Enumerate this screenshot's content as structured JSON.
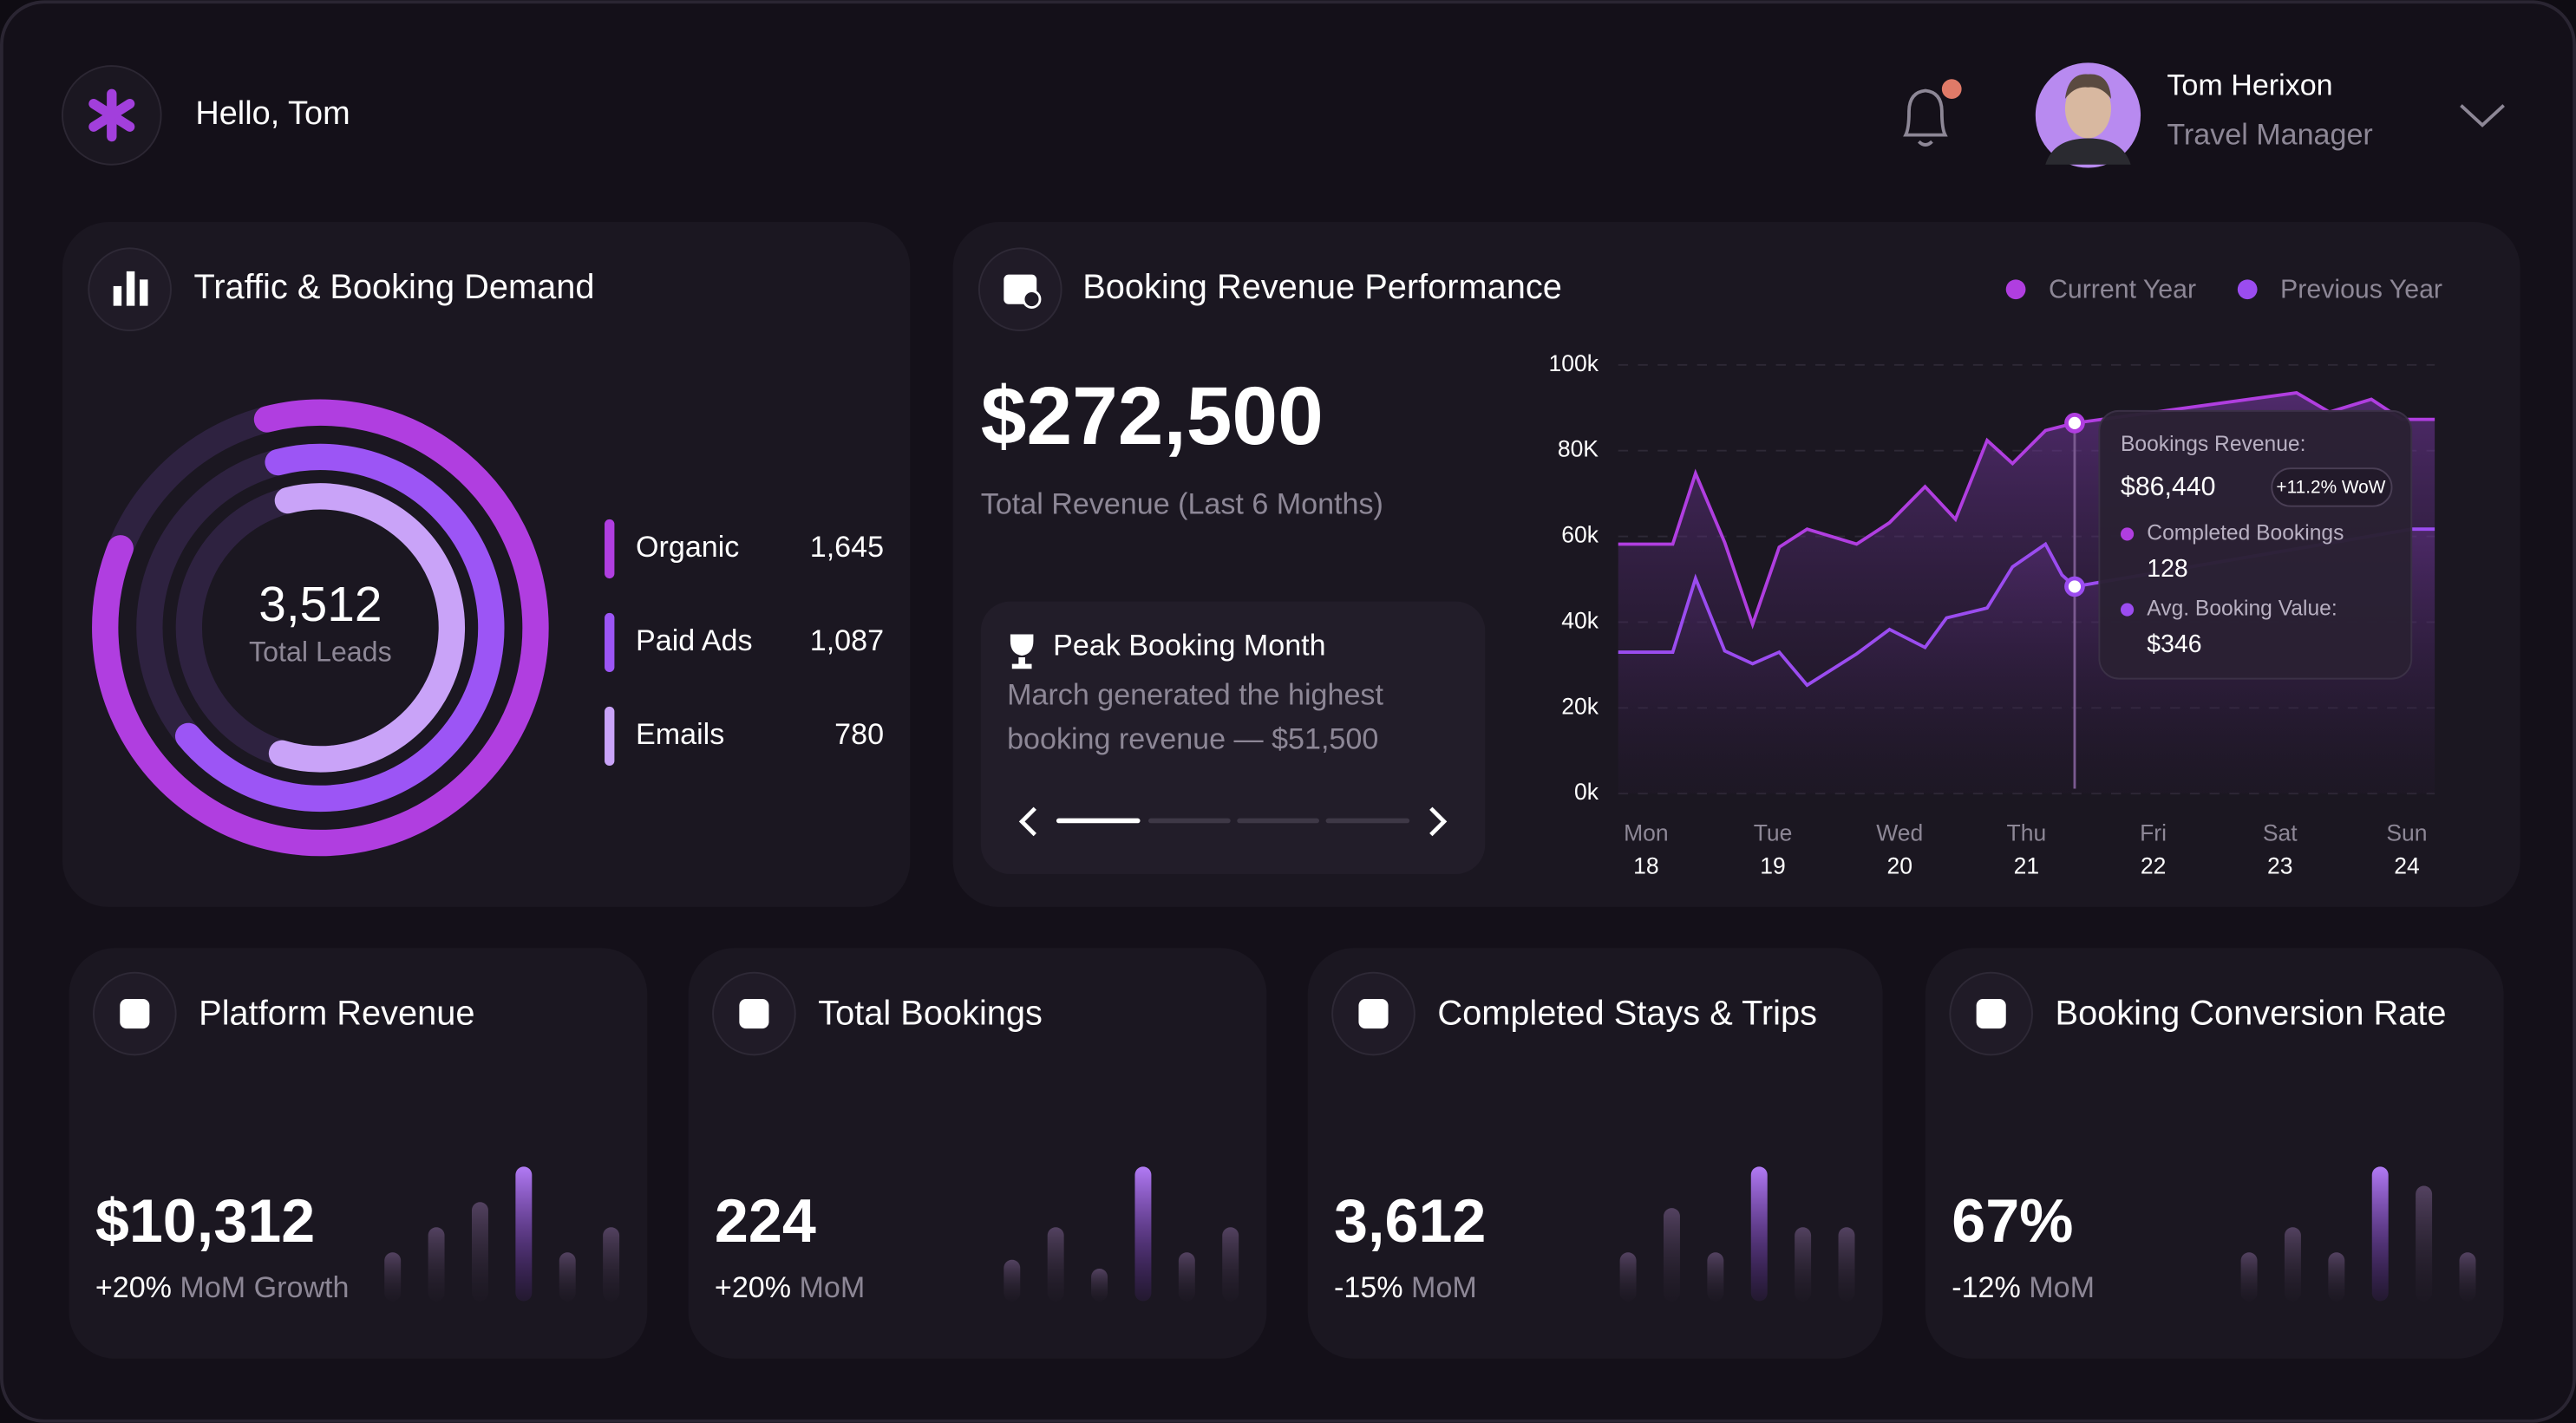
{
  "header": {
    "greeting": "Hello, Tom",
    "user_name": "Tom Herixon",
    "user_role": "Travel Manager"
  },
  "traffic": {
    "title": "Traffic & Booking Demand",
    "total": "3,512",
    "total_label": "Total Leads",
    "chart_data": {
      "type": "donut",
      "categories": [
        "Organic",
        "Paid Ads",
        "Emails"
      ],
      "values": [
        1645,
        1087,
        780
      ],
      "value_labels": [
        "1,645",
        "1,087",
        "780"
      ],
      "colors": [
        "#b03ee0",
        "#9c55f5",
        "#c9a3f8"
      ]
    }
  },
  "revenue": {
    "title": "Booking Revenue Performance",
    "total": "$272,500",
    "total_label": "Total Revenue (Last 6 Months)",
    "peak": {
      "title": "Peak Booking Month",
      "lines": [
        "March generated the highest",
        "booking revenue — $51,500"
      ]
    },
    "chart_data": {
      "type": "line",
      "categories": [
        "Mon",
        "Tue",
        "Wed",
        "Thu",
        "Fri",
        "Sat",
        "Sun"
      ],
      "category_dates": [
        "18",
        "19",
        "20",
        "21",
        "22",
        "23",
        "24"
      ],
      "xlim": [
        -0.22,
        6.22
      ],
      "ylim": [
        0,
        100000
      ],
      "yticks": [
        {
          "value": 0,
          "label": "0k"
        },
        {
          "value": 20000,
          "label": "20k"
        },
        {
          "value": 40000,
          "label": "40k"
        },
        {
          "value": 60000,
          "label": "60k"
        },
        {
          "value": 80000,
          "label": "80K"
        },
        {
          "value": 100000,
          "label": "100k"
        }
      ],
      "grid": true,
      "legend": "top-right",
      "series": [
        {
          "name": "Current Year",
          "color": "#b03ee0",
          "x": [
            -0.22,
            0.21,
            0.39,
            0.62,
            0.84,
            1.05,
            1.27,
            1.66,
            1.92,
            2.2,
            2.44,
            2.69,
            2.89,
            3.15,
            3.38,
            5.13,
            5.39,
            5.72,
            5.96,
            6.22
          ],
          "values": [
            58200,
            58200,
            74700,
            58600,
            39500,
            57500,
            61700,
            58200,
            63200,
            71600,
            64000,
            82400,
            77000,
            84700,
            86440,
            93500,
            89000,
            92000,
            87300,
            87300
          ]
        },
        {
          "name": "Previous Year",
          "color": "#9b4cf0",
          "x": [
            -0.22,
            0.21,
            0.39,
            0.62,
            0.84,
            1.05,
            1.27,
            1.66,
            1.92,
            2.2,
            2.37,
            2.69,
            2.89,
            3.15,
            3.28,
            3.38,
            6.04,
            6.22
          ],
          "values": [
            33000,
            33000,
            50200,
            33300,
            30300,
            33000,
            25300,
            32600,
            38300,
            34100,
            41000,
            43300,
            52900,
            58200,
            51000,
            48300,
            61700,
            61700
          ]
        }
      ],
      "tooltip": {
        "x": 3.38,
        "title": "Bookings Revenue:",
        "value": "$86,440",
        "badge": "+11.2% WoW",
        "items": [
          {
            "label": "Completed Bookings",
            "value": "128"
          },
          {
            "label": "Avg. Booking Value:",
            "value": "$346"
          }
        ]
      }
    }
  },
  "stats": [
    {
      "title": "Platform Revenue",
      "value": "$10,312",
      "change": "+20%",
      "change_label": "MoM Growth",
      "chart_data": {
        "type": "bar",
        "values": [
          33,
          50,
          67,
          91,
          33,
          50
        ],
        "highlight": 3
      }
    },
    {
      "title": "Total Bookings",
      "value": "224",
      "change": "+20%",
      "change_label": "MoM",
      "chart_data": {
        "type": "bar",
        "values": [
          28,
          50,
          22,
          91,
          33,
          50
        ],
        "highlight": 3
      }
    },
    {
      "title": "Completed Stays & Trips",
      "value": "3,612",
      "change": "-15%",
      "change_label": "MoM",
      "chart_data": {
        "type": "bar",
        "values": [
          33,
          63,
          33,
          91,
          50,
          50
        ],
        "highlight": 3
      }
    },
    {
      "title": "Booking Conversion Rate",
      "value": "67%",
      "change": "-12%",
      "change_label": "MoM",
      "chart_data": {
        "type": "bar",
        "values": [
          33,
          50,
          33,
          91,
          78,
          33
        ],
        "highlight": 3
      }
    }
  ]
}
